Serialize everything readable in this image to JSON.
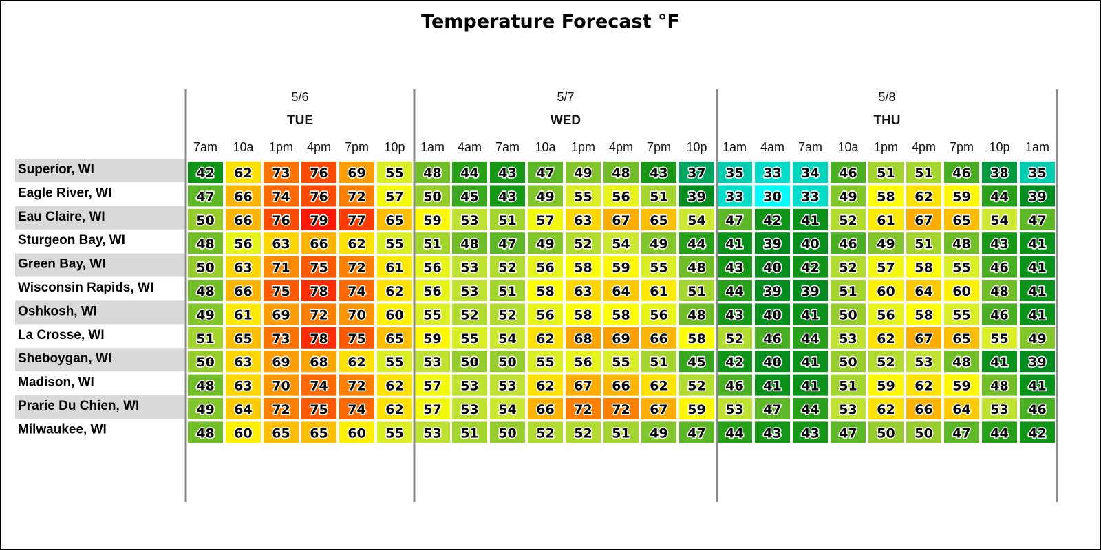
{
  "chart_data": {
    "type": "heatmap",
    "title": "Temperature Forecast °F",
    "days": [
      {
        "date": "5/6",
        "day": "TUE",
        "start": 0,
        "count": 6
      },
      {
        "date": "5/7",
        "day": "WED",
        "start": 6,
        "count": 8
      },
      {
        "date": "5/8",
        "day": "THU",
        "start": 14,
        "count": 9
      }
    ],
    "times": [
      "7am",
      "10a",
      "1pm",
      "4pm",
      "7pm",
      "10p",
      "1am",
      "4am",
      "7am",
      "10a",
      "1pm",
      "4pm",
      "7pm",
      "10p",
      "1am",
      "4am",
      "7am",
      "10a",
      "1pm",
      "4pm",
      "7pm",
      "10p",
      "1am"
    ],
    "cities": [
      "Superior, WI",
      "Eagle River, WI",
      "Eau Claire, WI",
      "Sturgeon Bay, WI",
      "Green Bay, WI",
      "Wisconsin Rapids, WI",
      "Oshkosh, WI",
      "La Crosse, WI",
      "Sheboygan, WI",
      "Madison, WI",
      "Prarie Du Chien, WI",
      "Milwaukee, WI"
    ],
    "values": [
      [
        42,
        62,
        73,
        76,
        69,
        55,
        48,
        44,
        43,
        47,
        49,
        48,
        43,
        37,
        35,
        33,
        34,
        46,
        51,
        51,
        46,
        38,
        35
      ],
      [
        47,
        66,
        74,
        76,
        72,
        57,
        50,
        45,
        43,
        49,
        55,
        56,
        51,
        39,
        33,
        30,
        33,
        49,
        58,
        62,
        59,
        44,
        39
      ],
      [
        50,
        66,
        76,
        79,
        77,
        65,
        59,
        53,
        51,
        57,
        63,
        67,
        65,
        54,
        47,
        42,
        41,
        52,
        61,
        67,
        65,
        54,
        47
      ],
      [
        48,
        56,
        63,
        66,
        62,
        55,
        51,
        48,
        47,
        49,
        52,
        54,
        49,
        44,
        41,
        39,
        40,
        46,
        49,
        51,
        48,
        43,
        41
      ],
      [
        50,
        63,
        71,
        75,
        72,
        61,
        56,
        53,
        52,
        56,
        58,
        59,
        55,
        48,
        43,
        40,
        42,
        52,
        57,
        58,
        55,
        46,
        41
      ],
      [
        48,
        66,
        75,
        78,
        74,
        62,
        56,
        53,
        51,
        58,
        63,
        64,
        61,
        51,
        44,
        39,
        39,
        51,
        60,
        64,
        60,
        48,
        41
      ],
      [
        49,
        61,
        69,
        72,
        70,
        60,
        55,
        52,
        52,
        56,
        58,
        58,
        56,
        48,
        43,
        40,
        41,
        50,
        56,
        58,
        55,
        46,
        41
      ],
      [
        51,
        65,
        73,
        78,
        75,
        65,
        59,
        55,
        54,
        62,
        68,
        69,
        66,
        58,
        52,
        46,
        44,
        53,
        62,
        67,
        65,
        55,
        49
      ],
      [
        50,
        63,
        69,
        68,
        62,
        55,
        53,
        50,
        50,
        55,
        56,
        55,
        51,
        45,
        42,
        40,
        41,
        50,
        52,
        53,
        48,
        41,
        39
      ],
      [
        48,
        63,
        70,
        74,
        72,
        62,
        57,
        53,
        53,
        62,
        67,
        66,
        62,
        52,
        46,
        41,
        41,
        51,
        59,
        62,
        59,
        48,
        41
      ],
      [
        49,
        64,
        72,
        75,
        74,
        62,
        57,
        53,
        54,
        66,
        72,
        72,
        67,
        59,
        53,
        47,
        44,
        53,
        62,
        66,
        64,
        53,
        46
      ],
      [
        48,
        60,
        65,
        65,
        60,
        55,
        53,
        51,
        50,
        52,
        52,
        51,
        49,
        47,
        44,
        43,
        43,
        47,
        50,
        50,
        47,
        44,
        42
      ]
    ]
  }
}
